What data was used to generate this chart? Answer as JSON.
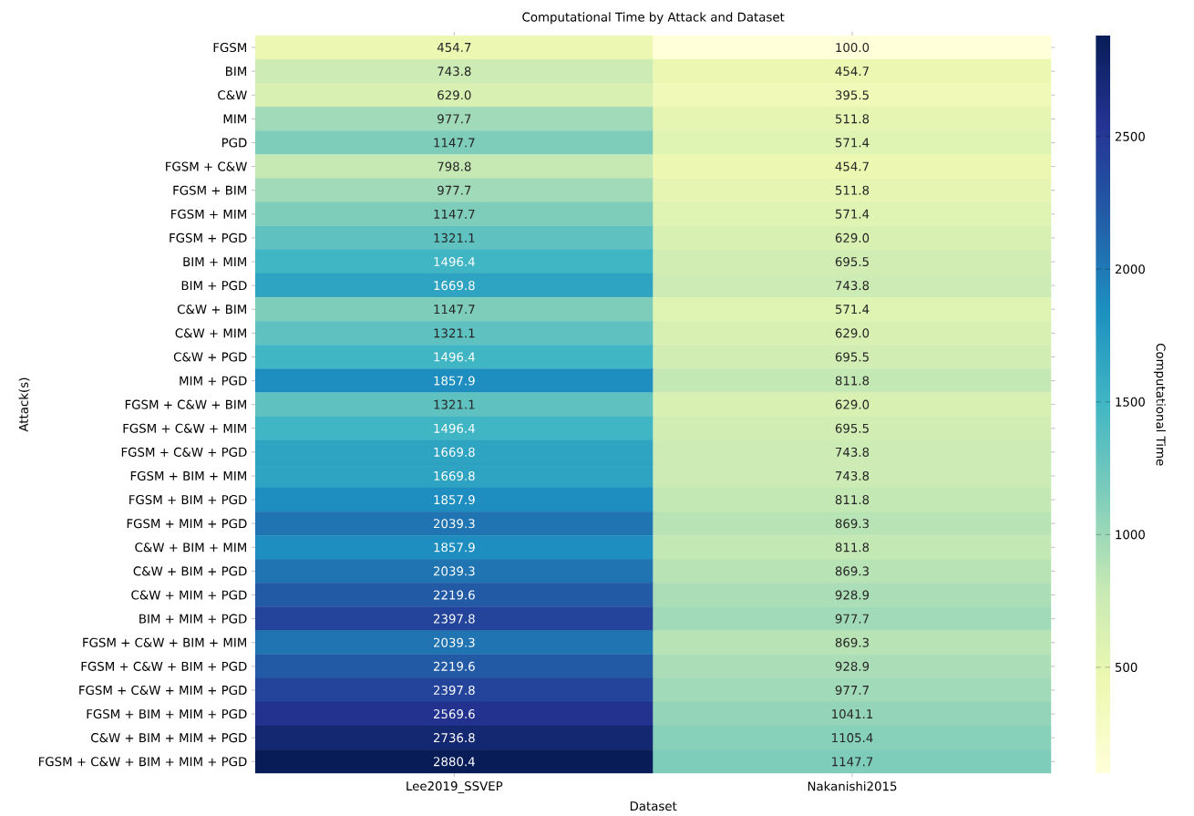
{
  "chart_data": {
    "type": "heatmap",
    "title": "Computational Time by Attack and Dataset",
    "xlabel": "Dataset",
    "ylabel": "Attack(s)",
    "clabel": "Computational Time",
    "categories": [
      "Lee2019_SSVEP",
      "Nakanishi2015"
    ],
    "y_categories": [
      "FGSM",
      "BIM",
      "C&W",
      "MIM",
      "PGD",
      "FGSM + C&W",
      "FGSM + BIM",
      "FGSM + MIM",
      "FGSM + PGD",
      "BIM + MIM",
      "BIM + PGD",
      "C&W + BIM",
      "C&W + MIM",
      "C&W + PGD",
      "MIM + PGD",
      "FGSM + C&W + BIM",
      "FGSM + C&W + MIM",
      "FGSM + C&W + PGD",
      "FGSM + BIM + MIM",
      "FGSM + BIM + PGD",
      "FGSM + MIM + PGD",
      "C&W + BIM + MIM",
      "C&W + BIM + PGD",
      "C&W + MIM + PGD",
      "BIM + MIM + PGD",
      "FGSM + C&W + BIM + MIM",
      "FGSM + C&W + BIM + PGD",
      "FGSM + C&W + MIM + PGD",
      "FGSM + BIM + MIM + PGD",
      "C&W + BIM + MIM + PGD",
      "FGSM + C&W + BIM + MIM + PGD"
    ],
    "cells": [
      [
        454.7,
        100.0
      ],
      [
        743.8,
        454.7
      ],
      [
        629.0,
        395.5
      ],
      [
        977.7,
        511.8
      ],
      [
        1147.7,
        571.4
      ],
      [
        798.8,
        454.7
      ],
      [
        977.7,
        511.8
      ],
      [
        1147.7,
        571.4
      ],
      [
        1321.1,
        629.0
      ],
      [
        1496.4,
        695.5
      ],
      [
        1669.8,
        743.8
      ],
      [
        1147.7,
        571.4
      ],
      [
        1321.1,
        629.0
      ],
      [
        1496.4,
        695.5
      ],
      [
        1857.9,
        811.8
      ],
      [
        1321.1,
        629.0
      ],
      [
        1496.4,
        695.5
      ],
      [
        1669.8,
        743.8
      ],
      [
        1669.8,
        743.8
      ],
      [
        1857.9,
        811.8
      ],
      [
        2039.3,
        869.3
      ],
      [
        1857.9,
        811.8
      ],
      [
        2039.3,
        869.3
      ],
      [
        2219.6,
        928.9
      ],
      [
        2397.8,
        977.7
      ],
      [
        2039.3,
        869.3
      ],
      [
        2219.6,
        928.9
      ],
      [
        2397.8,
        977.7
      ],
      [
        2569.6,
        1041.1
      ],
      [
        2736.8,
        1105.4
      ],
      [
        2880.4,
        1147.7
      ]
    ],
    "cell_labels": [
      [
        "454.7",
        "100.0"
      ],
      [
        "743.8",
        "454.7"
      ],
      [
        "629.0",
        "395.5"
      ],
      [
        "977.7",
        "511.8"
      ],
      [
        "1147.7",
        "571.4"
      ],
      [
        "798.8",
        "454.7"
      ],
      [
        "977.7",
        "511.8"
      ],
      [
        "1147.7",
        "571.4"
      ],
      [
        "1321.1",
        "629.0"
      ],
      [
        "1496.4",
        "695.5"
      ],
      [
        "1669.8",
        "743.8"
      ],
      [
        "1147.7",
        "571.4"
      ],
      [
        "1321.1",
        "629.0"
      ],
      [
        "1496.4",
        "695.5"
      ],
      [
        "1857.9",
        "811.8"
      ],
      [
        "1321.1",
        "629.0"
      ],
      [
        "1496.4",
        "695.5"
      ],
      [
        "1669.8",
        "743.8"
      ],
      [
        "1669.8",
        "743.8"
      ],
      [
        "1857.9",
        "811.8"
      ],
      [
        "2039.3",
        "869.3"
      ],
      [
        "1857.9",
        "811.8"
      ],
      [
        "2039.3",
        "869.3"
      ],
      [
        "2219.6",
        "928.9"
      ],
      [
        "2397.8",
        "977.7"
      ],
      [
        "2039.3",
        "869.3"
      ],
      [
        "2219.6",
        "928.9"
      ],
      [
        "2397.8",
        "977.7"
      ],
      [
        "2569.6",
        "1041.1"
      ],
      [
        "2736.8",
        "1105.4"
      ],
      [
        "2880.4",
        "1147.7"
      ]
    ],
    "clim": [
      100,
      2880.4
    ],
    "cticks": [
      500,
      1000,
      1500,
      2000,
      2500
    ]
  }
}
